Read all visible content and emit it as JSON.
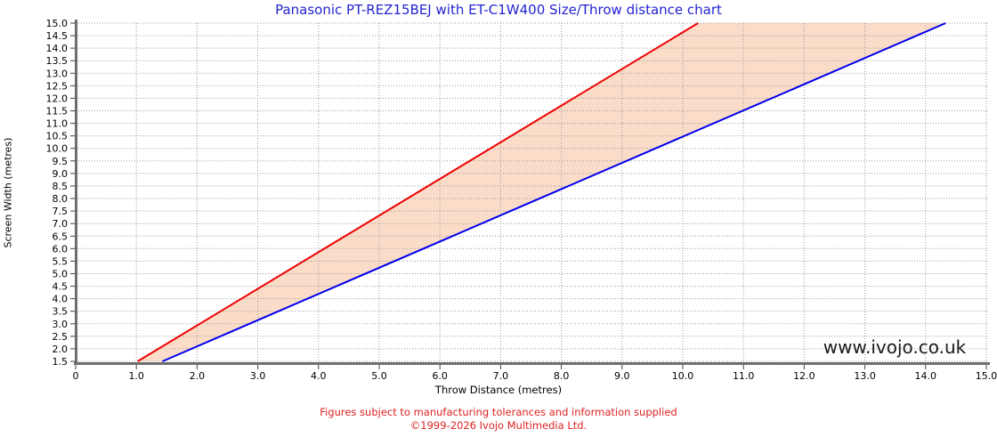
{
  "title": {
    "text": "Panasonic PT-REZ15BEJ with ET-C1W400 Size/Throw distance chart",
    "color": "#2323d0"
  },
  "watermark": "www.ivojo.co.uk",
  "footer": {
    "line1": "Figures subject to manufacturing tolerances and information supplied",
    "line2": "©1999-2026 Ivojo Multimedia Ltd.",
    "color": "#dd2222"
  },
  "chart_data": {
    "type": "area",
    "title": "Panasonic PT-REZ15BEJ with ET-C1W400 Size/Throw distance chart",
    "xlabel": "Throw Distance (metres)",
    "ylabel": "Screen Width (metres)",
    "xlim": [
      0,
      15
    ],
    "ylim": [
      1.5,
      15
    ],
    "grid": true,
    "legend": "none",
    "x_ticks": [
      [
        0,
        "0"
      ],
      [
        1,
        "1.0"
      ],
      [
        2,
        "2.0"
      ],
      [
        3,
        "3.0"
      ],
      [
        4,
        "4.0"
      ],
      [
        5,
        "5.0"
      ],
      [
        6,
        "6.0"
      ],
      [
        7,
        "7.0"
      ],
      [
        8,
        "8.0"
      ],
      [
        9,
        "9.0"
      ],
      [
        10,
        "10.0"
      ],
      [
        11,
        "11.0"
      ],
      [
        12,
        "12.0"
      ],
      [
        13,
        "13.0"
      ],
      [
        14,
        "14.0"
      ],
      [
        15,
        "15.0"
      ]
    ],
    "y_ticks": [
      [
        1.5,
        "1.5"
      ],
      [
        2,
        "2.0"
      ],
      [
        2.5,
        "2.5"
      ],
      [
        3,
        "3.0"
      ],
      [
        3.5,
        "3.5"
      ],
      [
        4,
        "4.0"
      ],
      [
        4.5,
        "4.5"
      ],
      [
        5,
        "5.0"
      ],
      [
        5.5,
        "5.5"
      ],
      [
        6,
        "6.0"
      ],
      [
        6.5,
        "6.5"
      ],
      [
        7,
        "7.0"
      ],
      [
        7.5,
        "7.5"
      ],
      [
        8,
        "8.0"
      ],
      [
        8.5,
        "8.5"
      ],
      [
        9,
        "9.0"
      ],
      [
        9.5,
        "9.5"
      ],
      [
        10,
        "10.0"
      ],
      [
        10.5,
        "10.5"
      ],
      [
        11,
        "11.0"
      ],
      [
        11.5,
        "11.5"
      ],
      [
        12,
        "12.0"
      ],
      [
        12.5,
        "12.5"
      ],
      [
        13,
        "13.0"
      ],
      [
        13.5,
        "13.5"
      ],
      [
        14,
        "14.0"
      ],
      [
        14.5,
        "14.5"
      ],
      [
        15,
        "15.0"
      ]
    ],
    "series": [
      {
        "name": "min-throw-red-line",
        "color": "#ee0000",
        "points": [
          [
            1.02,
            1.5
          ],
          [
            10.25,
            15.0
          ]
        ]
      },
      {
        "name": "max-throw-blue-line",
        "color": "#0000ee",
        "points": [
          [
            1.43,
            1.5
          ],
          [
            14.33,
            15.0
          ]
        ]
      }
    ],
    "fill_between": {
      "color": "#fbdcc8"
    },
    "grid_color": "#999999",
    "axis_color": "#6e6e6e"
  }
}
